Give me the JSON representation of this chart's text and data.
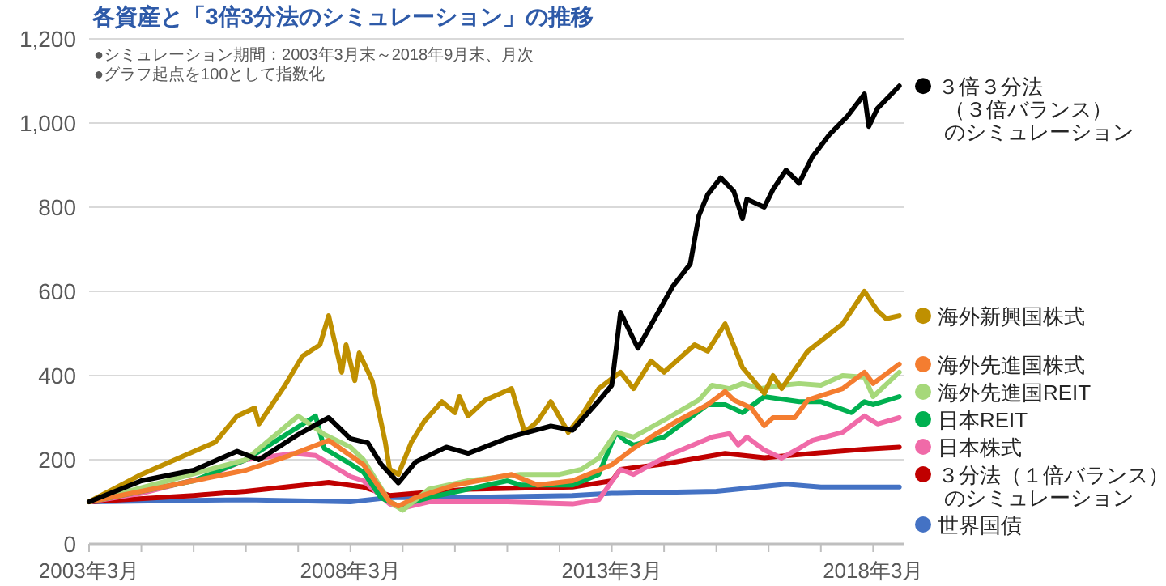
{
  "chart_data": {
    "type": "line",
    "title": "各資産と「3倍3分法のシミュレーション」の推移",
    "annotations": [
      "●シミュレーション期間：2003年3月末～2018年9月末、月次",
      "●グラフ起点を100として指数化"
    ],
    "xlim": [
      "2003-03",
      "2018-10"
    ],
    "xticks": [
      {
        "value": "2003-03",
        "label": "2003年3月"
      },
      {
        "value": "2004-03",
        "label": null
      },
      {
        "value": "2005-03",
        "label": null
      },
      {
        "value": "2006-03",
        "label": null
      },
      {
        "value": "2007-03",
        "label": null
      },
      {
        "value": "2008-03",
        "label": "2008年3月"
      },
      {
        "value": "2009-03",
        "label": null
      },
      {
        "value": "2010-03",
        "label": null
      },
      {
        "value": "2011-03",
        "label": null
      },
      {
        "value": "2012-03",
        "label": null
      },
      {
        "value": "2013-03",
        "label": "2013年3月"
      },
      {
        "value": "2014-03",
        "label": null
      },
      {
        "value": "2015-03",
        "label": null
      },
      {
        "value": "2016-03",
        "label": null
      },
      {
        "value": "2017-03",
        "label": null
      },
      {
        "value": "2018-03",
        "label": "2018年3月"
      }
    ],
    "ylim": [
      0,
      1200
    ],
    "yticks": [
      0,
      200,
      400,
      600,
      800,
      {
        "value": 1000,
        "label": "1,000"
      },
      {
        "value": 1200,
        "label": "1,200"
      }
    ],
    "grid": "y",
    "legend": "right",
    "line_style": "solid",
    "series": [
      {
        "name": "３倍３分法（３倍バランス）のシミュレーション",
        "color": "#000000",
        "x": [
          "2003-03",
          "2004-03",
          "2005-03",
          "2006-01",
          "2006-06",
          "2007-03",
          "2007-10",
          "2008-03",
          "2008-07",
          "2008-10",
          "2009-02",
          "2009-06",
          "2010-01",
          "2010-06",
          "2011-04",
          "2012-01",
          "2012-06",
          "2012-12",
          "2013-03",
          "2013-05",
          "2013-09",
          "2014-05",
          "2014-09",
          "2014-11",
          "2015-01",
          "2015-04",
          "2015-07",
          "2015-09",
          "2015-10",
          "2016-02",
          "2016-04",
          "2016-07",
          "2016-10",
          "2017-01",
          "2017-05",
          "2017-09",
          "2018-01",
          "2018-02",
          "2018-04",
          "2018-09"
        ],
        "values": [
          100,
          150,
          175,
          220,
          200,
          260,
          300,
          250,
          240,
          190,
          145,
          195,
          230,
          215,
          255,
          280,
          270,
          340,
          377,
          550,
          465,
          612,
          665,
          780,
          830,
          870,
          838,
          773,
          819,
          800,
          842,
          888,
          857,
          919,
          973,
          1015,
          1069,
          992,
          1035,
          1088
        ]
      },
      {
        "name": "海外新興国株式",
        "color": "#bf9000",
        "x": [
          "2003-03",
          "2004-03",
          "2005-08",
          "2006-01",
          "2006-05",
          "2006-06",
          "2006-12",
          "2007-04",
          "2007-08",
          "2007-10",
          "2008-01",
          "2008-02",
          "2008-04",
          "2008-05",
          "2008-08",
          "2008-11",
          "2008-12",
          "2009-02",
          "2009-05",
          "2009-08",
          "2009-12",
          "2010-03",
          "2010-04",
          "2010-06",
          "2010-10",
          "2011-04",
          "2011-07",
          "2011-10",
          "2012-01",
          "2012-05",
          "2012-08",
          "2012-12",
          "2013-05",
          "2013-08",
          "2013-12",
          "2014-03",
          "2014-10",
          "2015-01",
          "2015-05",
          "2015-09",
          "2016-02",
          "2016-04",
          "2016-06",
          "2016-12",
          "2017-08",
          "2018-01",
          "2018-04",
          "2018-06",
          "2018-09"
        ],
        "values": [
          100,
          165,
          242,
          304,
          323,
          285,
          377,
          446,
          473,
          542,
          408,
          473,
          388,
          454,
          388,
          242,
          177,
          165,
          242,
          292,
          338,
          312,
          350,
          304,
          342,
          369,
          265,
          292,
          338,
          265,
          304,
          369,
          408,
          369,
          435,
          408,
          473,
          458,
          523,
          419,
          358,
          400,
          369,
          458,
          523,
          600,
          554,
          535,
          542
        ]
      },
      {
        "name": "海外先進国株式",
        "color": "#f47d30",
        "x": [
          "2003-03",
          "2005-03",
          "2006-03",
          "2007-01",
          "2007-10",
          "2008-03",
          "2008-06",
          "2008-12",
          "2009-02",
          "2009-06",
          "2010-03",
          "2011-04",
          "2011-10",
          "2012-06",
          "2013-03",
          "2013-08",
          "2013-12",
          "2014-06",
          "2015-01",
          "2015-05",
          "2015-07",
          "2015-11",
          "2016-02",
          "2016-04",
          "2016-09",
          "2016-12",
          "2017-08",
          "2018-01",
          "2018-03",
          "2018-09"
        ],
        "values": [
          100,
          150,
          175,
          210,
          246,
          210,
          188,
          100,
          90,
          110,
          140,
          165,
          140,
          150,
          188,
          227,
          254,
          292,
          331,
          362,
          342,
          323,
          281,
          300,
          300,
          342,
          369,
          408,
          381,
          427
        ]
      },
      {
        "name": "海外先進国REIT",
        "color": "#a6d87a",
        "x": [
          "2003-03",
          "2006-03",
          "2007-03",
          "2007-09",
          "2008-03",
          "2008-06",
          "2008-12",
          "2009-03",
          "2009-09",
          "2010-06",
          "2011-06",
          "2012-03",
          "2012-08",
          "2012-12",
          "2013-04",
          "2013-08",
          "2014-04",
          "2014-11",
          "2015-02",
          "2015-06",
          "2015-09",
          "2016-01",
          "2016-06",
          "2016-10",
          "2017-03",
          "2017-08",
          "2018-01",
          "2018-03",
          "2018-09"
        ],
        "values": [
          100,
          200,
          304,
          260,
          230,
          200,
          100,
          80,
          130,
          150,
          165,
          165,
          177,
          204,
          265,
          254,
          300,
          342,
          377,
          369,
          381,
          369,
          377,
          381,
          377,
          400,
          396,
          350,
          408
        ]
      },
      {
        "name": "日本REIT",
        "color": "#00b050",
        "x": [
          "2003-03",
          "2005-03",
          "2006-03",
          "2007-07",
          "2007-09",
          "2008-03",
          "2008-06",
          "2008-10",
          "2009-02",
          "2009-09",
          "2010-06",
          "2011-03",
          "2011-06",
          "2012-06",
          "2012-12",
          "2013-04",
          "2013-06",
          "2013-08",
          "2014-03",
          "2014-08",
          "2015-01",
          "2015-05",
          "2015-09",
          "2016-02",
          "2016-10",
          "2017-03",
          "2017-10",
          "2018-01",
          "2018-03",
          "2018-09"
        ],
        "values": [
          100,
          150,
          200,
          304,
          227,
          190,
          170,
          110,
          90,
          110,
          130,
          150,
          140,
          140,
          165,
          265,
          246,
          235,
          254,
          292,
          331,
          331,
          312,
          350,
          338,
          338,
          312,
          338,
          331,
          350
        ]
      },
      {
        "name": "日本株式",
        "color": "#f06aa8",
        "x": [
          "2003-03",
          "2004-03",
          "2005-06",
          "2006-03",
          "2007-02",
          "2007-07",
          "2008-03",
          "2008-06",
          "2008-12",
          "2009-03",
          "2009-09",
          "2010-06",
          "2011-03",
          "2012-06",
          "2012-12",
          "2013-05",
          "2013-08",
          "2013-12",
          "2014-05",
          "2015-02",
          "2015-06",
          "2015-08",
          "2015-10",
          "2016-02",
          "2016-06",
          "2016-10",
          "2017-01",
          "2017-08",
          "2018-01",
          "2018-04",
          "2018-09"
        ],
        "values": [
          100,
          120,
          160,
          200,
          215,
          210,
          160,
          150,
          95,
          85,
          100,
          100,
          100,
          95,
          105,
          177,
          165,
          188,
          215,
          254,
          262,
          235,
          254,
          223,
          204,
          227,
          246,
          265,
          304,
          285,
          300
        ]
      },
      {
        "name": "３分法（１倍バランス）のシミュレーション",
        "color": "#c00000",
        "x": [
          "2003-03",
          "2005-03",
          "2006-03",
          "2007-10",
          "2008-06",
          "2008-12",
          "2009-06",
          "2010-06",
          "2012-06",
          "2013-03",
          "2013-05",
          "2014-03",
          "2015-05",
          "2016-02",
          "2017-01",
          "2018-01",
          "2018-09"
        ],
        "values": [
          100,
          115,
          125,
          146,
          135,
          115,
          120,
          130,
          135,
          150,
          177,
          190,
          215,
          205,
          215,
          225,
          230
        ]
      },
      {
        "name": "世界国債",
        "color": "#4472c4",
        "x": [
          "2003-03",
          "2006-03",
          "2008-03",
          "2008-12",
          "2010-03",
          "2012-06",
          "2013-03",
          "2015-03",
          "2016-07",
          "2017-03",
          "2018-09"
        ],
        "values": [
          100,
          105,
          100,
          110,
          110,
          115,
          120,
          125,
          142,
          135,
          135
        ]
      }
    ]
  }
}
